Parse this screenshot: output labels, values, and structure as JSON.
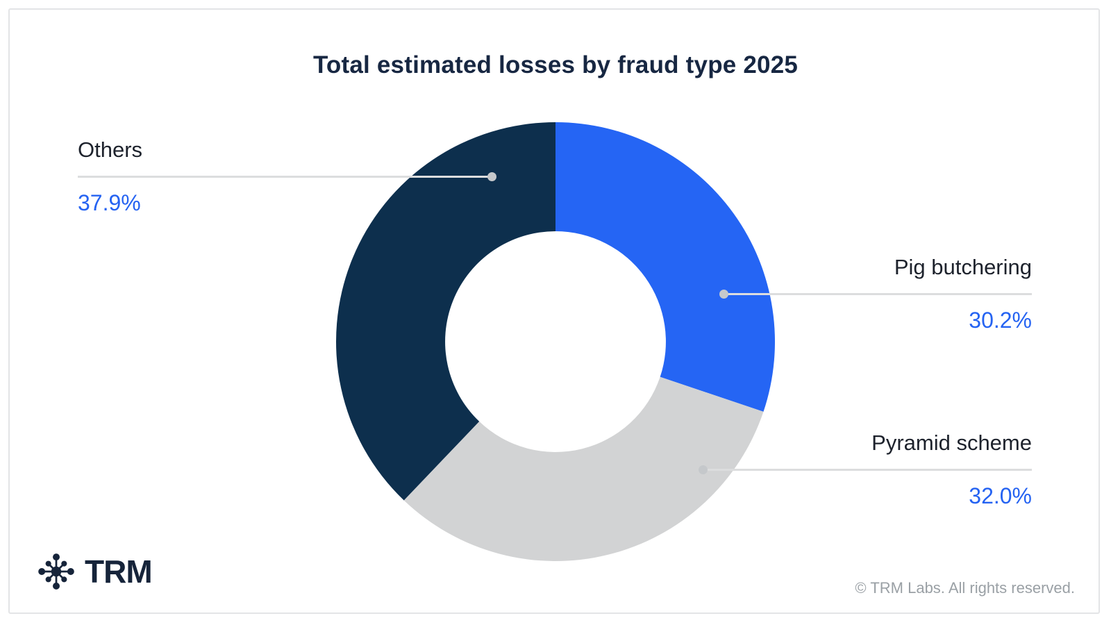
{
  "chart_data": {
    "type": "pie",
    "variant": "donut",
    "title": "Total estimated losses by fraud type 2025",
    "start_angle_deg": 0,
    "direction": "clockwise",
    "inner_radius_ratio": 0.503,
    "legend_position": "callouts",
    "series": [
      {
        "label": "Pig butchering",
        "value": 30.2,
        "display": "30.2%",
        "color": "#2565f4"
      },
      {
        "label": "Pyramid scheme",
        "value": 32.0,
        "display": "32.0%",
        "color": "#d2d3d4"
      },
      {
        "label": "Others",
        "value": 37.9,
        "display": "37.9%",
        "color": "#0d2f4d"
      }
    ]
  },
  "colors": {
    "accent_blue": "#2563f2",
    "brand_navy": "#16243a",
    "callout_line": "#dcddde",
    "callout_dot": "#c5c8cb"
  },
  "footer": {
    "brand_text": "TRM",
    "brand_logo_icon": "hub-spoke-network-icon",
    "copyright": "© TRM Labs. All rights reserved."
  }
}
